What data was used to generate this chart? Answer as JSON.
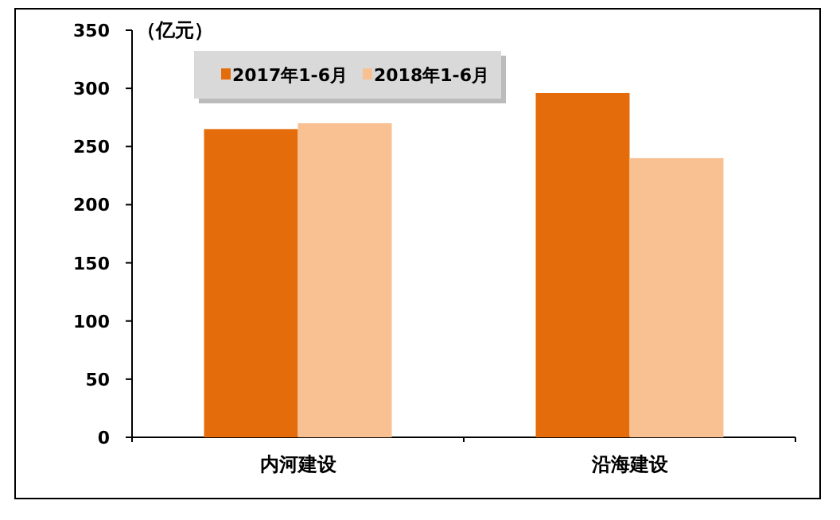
{
  "chart_data": {
    "type": "bar",
    "ylabel": "（亿元）",
    "categories": [
      "内河建设",
      "沿海建设"
    ],
    "series": [
      {
        "name": "2017年1-6月",
        "color": "#e46c0a",
        "values": [
          265,
          296
        ]
      },
      {
        "name": "2018年1-6月",
        "color": "#f9c092",
        "values": [
          270,
          240
        ]
      }
    ],
    "ylim": [
      0,
      350
    ],
    "yticks": [
      0,
      50,
      100,
      150,
      200,
      250,
      300,
      350
    ],
    "legend": "top left",
    "grid": false
  }
}
